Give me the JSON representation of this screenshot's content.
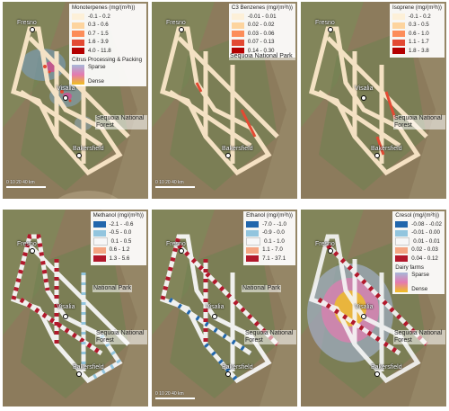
{
  "panels": [
    {
      "id": "monoterpenes",
      "legend_title": "Monoterpenes (mg/(m²h))",
      "bins": [
        {
          "label": "-0.1 - 0.2",
          "color": "#fdf0d8"
        },
        {
          "label": "0.3 - 0.6",
          "color": "#fdd49e"
        },
        {
          "label": "0.7 - 1.5",
          "color": "#fc8d59"
        },
        {
          "label": "1.6 - 3.9",
          "color": "#e34a33"
        },
        {
          "label": "4.0 - 11.8",
          "color": "#b30000"
        }
      ],
      "overlay_title": "Citrus Processing & Packing",
      "overlay_low": "Sparse",
      "overlay_high": "Dense",
      "labels": {
        "fresno": "Fresno",
        "visalia": "Visalia",
        "park": "Sequoia National Forest",
        "bakersfield": "Bakersfield"
      },
      "scale_text": "0 10 20 40 km"
    },
    {
      "id": "c3-benzenes",
      "legend_title": "C3 Benzenes (mg/(m²h))",
      "bins": [
        {
          "label": "-0.01 - 0.01",
          "color": "#fdf0d8"
        },
        {
          "label": "0.02 - 0.02",
          "color": "#fdd49e"
        },
        {
          "label": "0.03 - 0.06",
          "color": "#fc8d59"
        },
        {
          "label": "0.07 - 0.13",
          "color": "#e34a33"
        },
        {
          "label": "0.14 - 0.30",
          "color": "#b30000"
        }
      ],
      "labels": {
        "fresno": "Fresno",
        "park": "Sequoia National Park",
        "bakersfield": "Bakersfield"
      },
      "scale_text": "0 10 20 40 km"
    },
    {
      "id": "isoprene",
      "legend_title": "Isoprene (mg/(m²h))",
      "bins": [
        {
          "label": "-0.1 - 0.2",
          "color": "#fdf0d8"
        },
        {
          "label": "0.3 - 0.5",
          "color": "#fdd49e"
        },
        {
          "label": "0.6 - 1.0",
          "color": "#fc8d59"
        },
        {
          "label": "1.1 - 1.7",
          "color": "#e34a33"
        },
        {
          "label": "1.8 - 3.8",
          "color": "#b30000"
        }
      ],
      "labels": {
        "fresno": "Fresno",
        "visalia": "Visalia",
        "park": "Sequoia National Forest",
        "bakersfield": "Bakersfield"
      }
    },
    {
      "id": "methanol",
      "legend_title": "Methanol (mg/(m²h))",
      "bins": [
        {
          "label": "-2.1 - -0.6",
          "color": "#2166ac"
        },
        {
          "label": "-0.5 - 0.0",
          "color": "#92c5de"
        },
        {
          "label": "0.1 - 0.5",
          "color": "#f7f7f7"
        },
        {
          "label": "0.6 - 1.2",
          "color": "#f4a582"
        },
        {
          "label": "1.3 - 5.6",
          "color": "#b2182b"
        }
      ],
      "labels": {
        "fresno": "Fresno",
        "visalia": "Visalia",
        "park": "Sequoia National Forest",
        "park2": "National Park",
        "bakersfield": "Bakersfield"
      }
    },
    {
      "id": "ethanol",
      "legend_title": "Ethanol (mg/(m²h))",
      "bins": [
        {
          "label": "-7.0 - -1.0",
          "color": "#2166ac"
        },
        {
          "label": "-0.9 - 0.0",
          "color": "#92c5de"
        },
        {
          "label": "0.1 - 1.0",
          "color": "#f7f7f7"
        },
        {
          "label": "1.1 - 7.0",
          "color": "#f4a582"
        },
        {
          "label": "7.1 - 37.1",
          "color": "#b2182b"
        }
      ],
      "labels": {
        "fresno": "Fresno",
        "visalia": "Visalia",
        "park": "Sequoia National Forest",
        "park2": "National Park",
        "bakersfield": "Bakersfield"
      },
      "scale_text": "0 10 20 40 km"
    },
    {
      "id": "cresol",
      "legend_title": "Cresol (mg/(m²h))",
      "bins": [
        {
          "label": "-0.08 - -0.02",
          "color": "#2166ac"
        },
        {
          "label": "-0.01 - 0.00",
          "color": "#92c5de"
        },
        {
          "label": "0.01 - 0.01",
          "color": "#f7f7f7"
        },
        {
          "label": "0.02 - 0.03",
          "color": "#f4a582"
        },
        {
          "label": "0.04 - 0.12",
          "color": "#b2182b"
        }
      ],
      "overlay_title": "Dairy farms",
      "overlay_low": "Sparse",
      "overlay_high": "Dense",
      "labels": {
        "fresno": "Fresno",
        "visalia": "Visalia",
        "park": "Sequoia National Forest",
        "bakersfield": "Bakersfield"
      }
    }
  ]
}
